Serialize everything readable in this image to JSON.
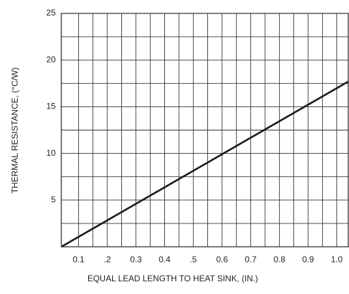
{
  "chart_data": {
    "type": "line",
    "xlabel": "EQUAL LEAD LENGTH TO HEAT SINK, (IN.)",
    "ylabel": "THERMAL RESISTANCE, (°C/W)",
    "x": [
      0.04,
      1.04
    ],
    "series": [
      {
        "color": "#1a1a1a",
        "values": [
          0,
          17.7
        ]
      }
    ],
    "xlim": [
      0.04,
      1.04
    ],
    "ylim": [
      0,
      25
    ],
    "xticks": [
      0.1,
      {
        "value": 0.2,
        "label": ".2"
      },
      0.3,
      0.4,
      {
        "value": 0.5,
        "label": ".5"
      },
      0.6,
      0.7,
      0.8,
      0.9,
      {
        "value": 1.0,
        "label": "1.0"
      }
    ],
    "yticks": [
      5,
      10,
      15,
      20,
      25
    ],
    "grid": true
  }
}
